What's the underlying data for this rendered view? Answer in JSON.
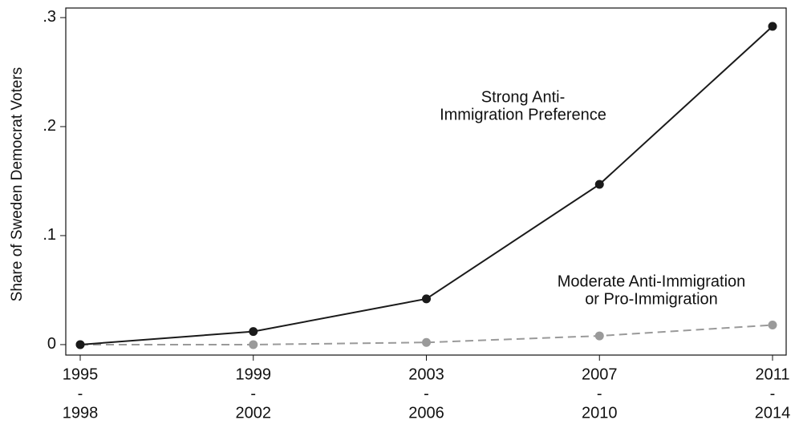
{
  "chart_data": {
    "type": "line",
    "ylabel": "Share of Sweden Democrat Voters",
    "categories": [
      [
        "1995",
        "-",
        "1998"
      ],
      [
        "1999",
        "-",
        "2002"
      ],
      [
        "2003",
        "-",
        "2006"
      ],
      [
        "2007",
        "-",
        "2010"
      ],
      [
        "2011",
        "-",
        "2014"
      ]
    ],
    "series": [
      {
        "color": "#1a1a1a",
        "dash": false,
        "values": [
          0,
          0.012,
          0.042,
          0.147,
          0.292
        ]
      },
      {
        "color": "#9a9a9a",
        "dash": true,
        "values": [
          0,
          0,
          0.002,
          0.008,
          0.018
        ]
      }
    ],
    "annotations": [
      [
        "Strong Anti-",
        "Immigration Preference"
      ],
      [
        "Moderate Anti-Immigration",
        "or Pro-Immigration"
      ]
    ],
    "ylim": [
      -0.0096,
      0.3088
    ],
    "yticks": [
      0,
      {
        "value": 0.1,
        "label": ".1"
      },
      {
        "value": 0.2,
        "label": ".2"
      },
      {
        "value": 0.3,
        "label": ".3"
      }
    ],
    "grid": false
  }
}
